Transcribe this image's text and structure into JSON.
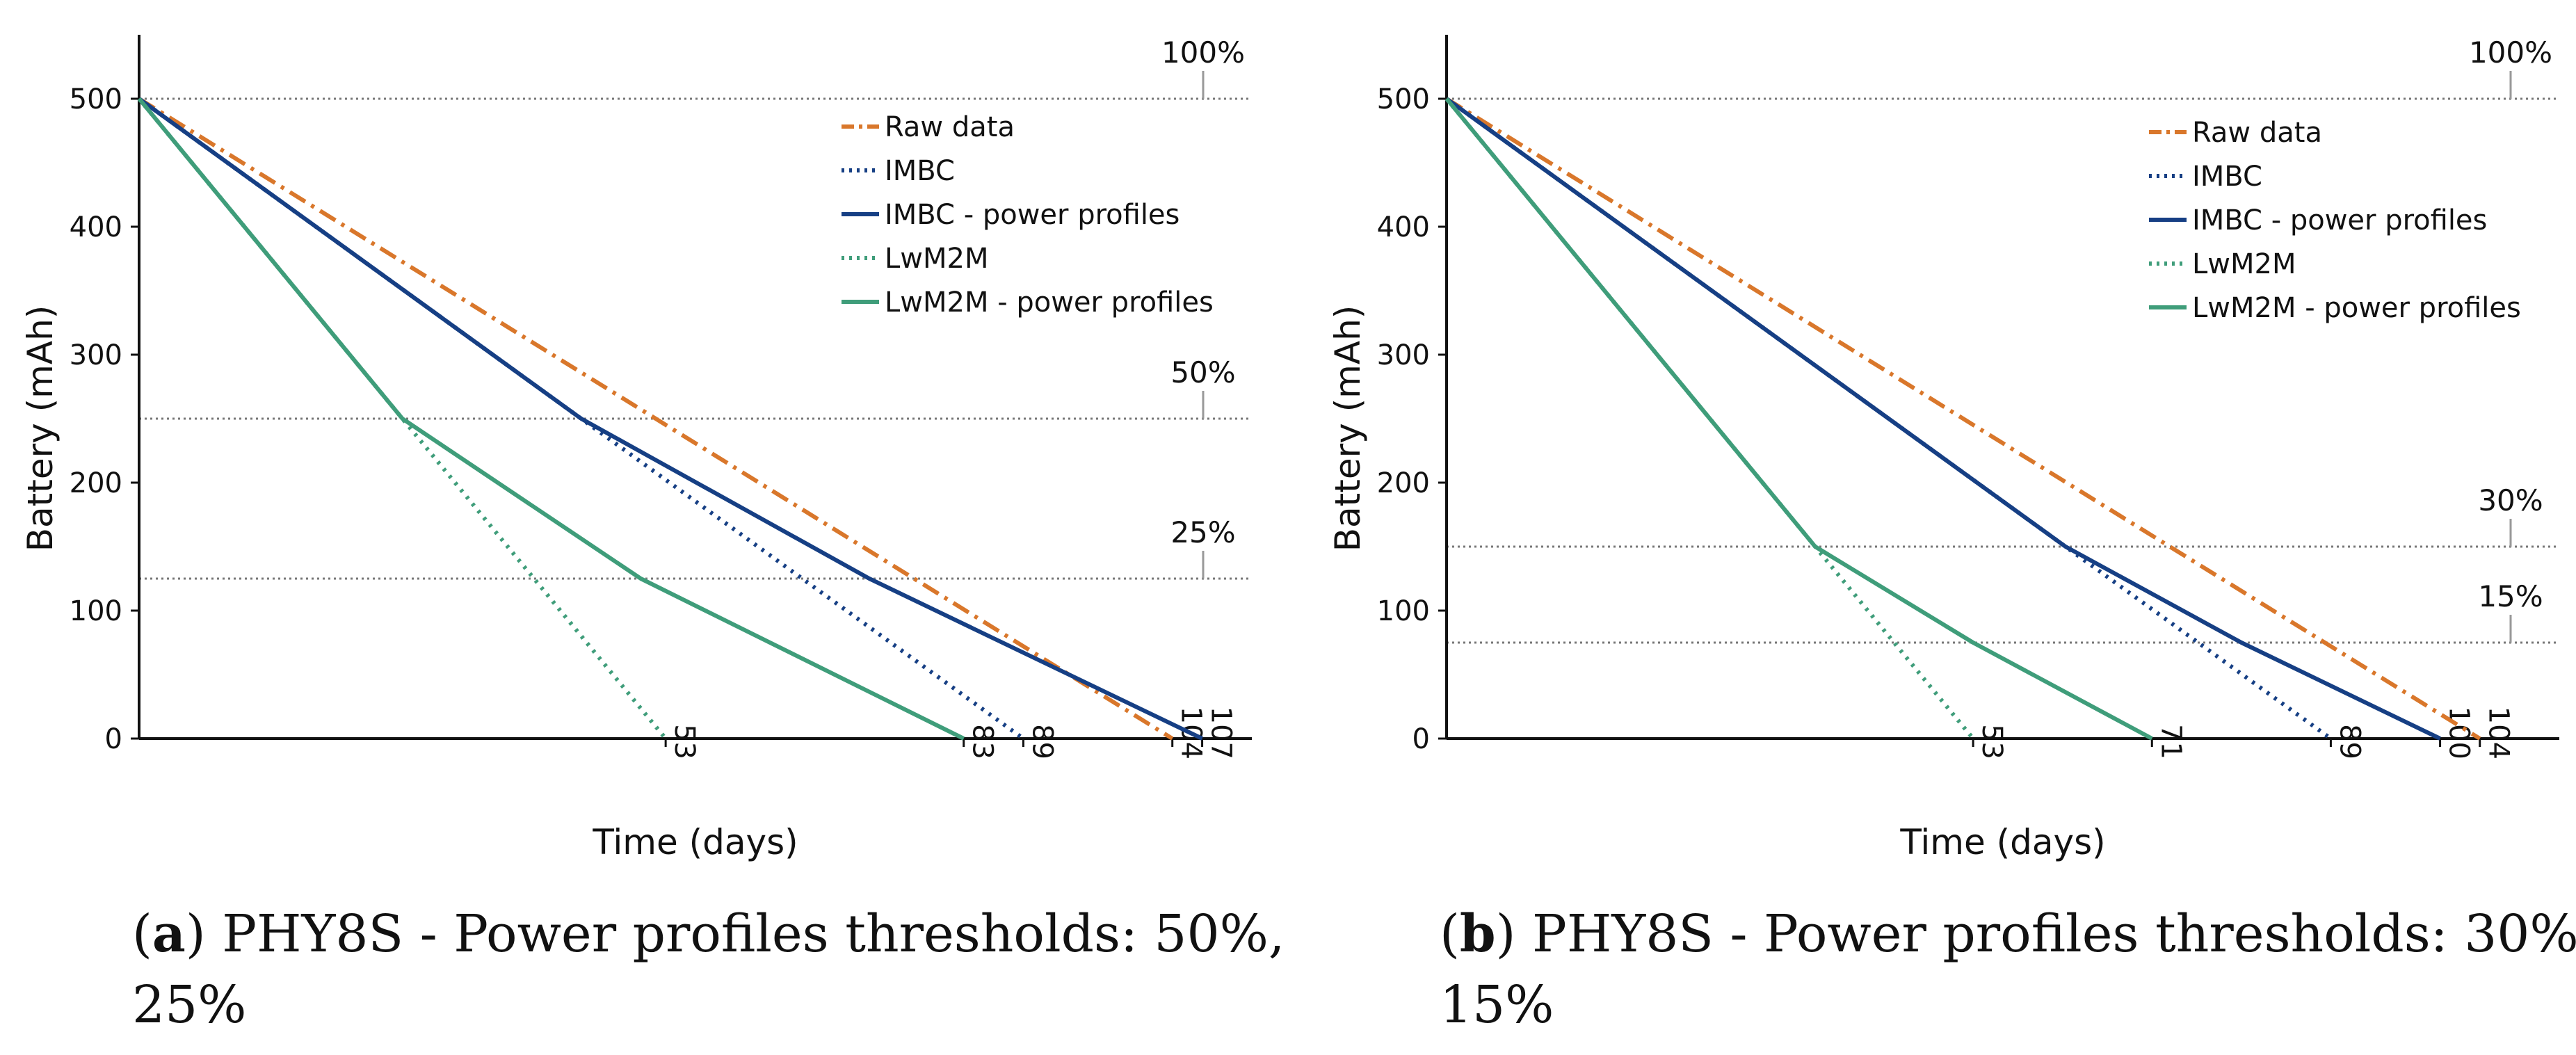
{
  "chart_data": [
    {
      "type": "line",
      "panel_label": "a",
      "caption_line1": " PHY8S - Power profiles thresholds: 50%,",
      "caption_line2": "25%",
      "xlabel": "Time (days)",
      "ylabel": "Battery (mAh)",
      "xlim": [
        0,
        112
      ],
      "ylim": [
        0,
        550
      ],
      "y_ticks": [
        0,
        100,
        200,
        300,
        400,
        500
      ],
      "x_ticks": [
        53,
        83,
        89,
        104,
        107
      ],
      "thresholds": [
        {
          "label": "100%",
          "value": 500
        },
        {
          "label": "50%",
          "value": 250
        },
        {
          "label": "25%",
          "value": 125
        }
      ],
      "series": [
        {
          "name": "Raw data",
          "color": "#D9772B",
          "style": "dashdot",
          "x": [
            0,
            104
          ],
          "y": [
            500,
            0
          ]
        },
        {
          "name": "IMBC",
          "color": "#163F84",
          "style": "dotted",
          "x": [
            0,
            44.5,
            89
          ],
          "y": [
            500,
            250,
            0
          ]
        },
        {
          "name": "IMBC - power profiles",
          "color": "#163F84",
          "style": "solid",
          "x": [
            0,
            44.5,
            73.5,
            107
          ],
          "y": [
            500,
            250,
            125,
            0
          ]
        },
        {
          "name": "LwM2M",
          "color": "#3F9D7A",
          "style": "dotted",
          "x": [
            0,
            26.5,
            53
          ],
          "y": [
            500,
            250,
            0
          ]
        },
        {
          "name": "LwM2M - power profiles",
          "color": "#3F9D7A",
          "style": "solid",
          "x": [
            0,
            26.5,
            50.5,
            83
          ],
          "y": [
            500,
            250,
            125,
            0
          ]
        }
      ]
    },
    {
      "type": "line",
      "panel_label": "b",
      "caption_line1": " PHY8S - Power profiles thresholds: 30%,",
      "caption_line2": "15%",
      "xlabel": "Time (days)",
      "ylabel": "Battery (mAh)",
      "xlim": [
        0,
        112
      ],
      "ylim": [
        0,
        550
      ],
      "y_ticks": [
        0,
        100,
        200,
        300,
        400,
        500
      ],
      "x_ticks": [
        53,
        71,
        89,
        100,
        104
      ],
      "thresholds": [
        {
          "label": "100%",
          "value": 500
        },
        {
          "label": "30%",
          "value": 150
        },
        {
          "label": "15%",
          "value": 75
        }
      ],
      "series": [
        {
          "name": "Raw data",
          "color": "#D9772B",
          "style": "dashdot",
          "x": [
            0,
            104
          ],
          "y": [
            500,
            0
          ]
        },
        {
          "name": "IMBC",
          "color": "#163F84",
          "style": "dotted",
          "x": [
            0,
            62.3,
            89
          ],
          "y": [
            500,
            150,
            0
          ]
        },
        {
          "name": "IMBC - power profiles",
          "color": "#163F84",
          "style": "solid",
          "x": [
            0,
            62.3,
            80,
            100
          ],
          "y": [
            500,
            150,
            75,
            0
          ]
        },
        {
          "name": "LwM2M",
          "color": "#3F9D7A",
          "style": "dotted",
          "x": [
            0,
            37.1,
            53
          ],
          "y": [
            500,
            150,
            0
          ]
        },
        {
          "name": "LwM2M - power profiles",
          "color": "#3F9D7A",
          "style": "solid",
          "x": [
            0,
            37.1,
            53,
            71
          ],
          "y": [
            500,
            150,
            75,
            0
          ]
        }
      ]
    }
  ]
}
